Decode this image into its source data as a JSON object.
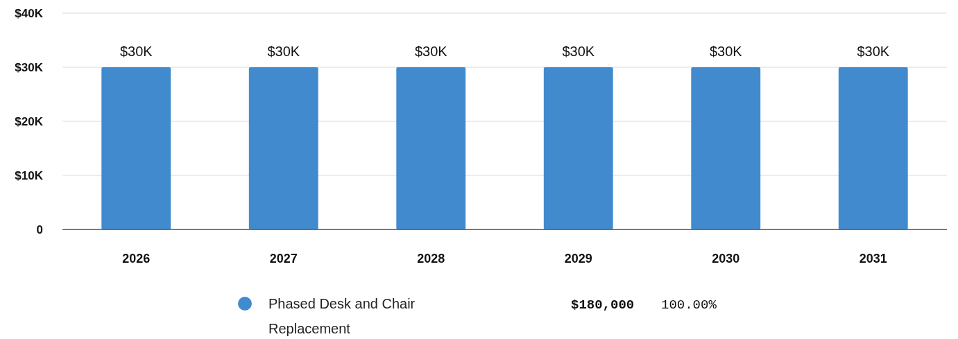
{
  "chart_data": {
    "type": "bar",
    "categories": [
      "2026",
      "2027",
      "2028",
      "2029",
      "2030",
      "2031"
    ],
    "series": [
      {
        "name": "Phased Desk and Chair Replacement",
        "color": "#418ace",
        "values": [
          30000,
          30000,
          30000,
          30000,
          30000,
          30000
        ]
      }
    ],
    "value_labels": [
      "$30K",
      "$30K",
      "$30K",
      "$30K",
      "$30K",
      "$30K"
    ],
    "ylim": [
      0,
      40000
    ],
    "yticks": [
      {
        "value": 0,
        "label": "0"
      },
      {
        "value": 10000,
        "label": "$10K"
      },
      {
        "value": 20000,
        "label": "$20K"
      },
      {
        "value": 30000,
        "label": "$30K"
      },
      {
        "value": 40000,
        "label": "$40K"
      }
    ],
    "grid": "y",
    "legend": "bottom",
    "annotations": [
      "$180,000",
      "100.00%"
    ]
  }
}
